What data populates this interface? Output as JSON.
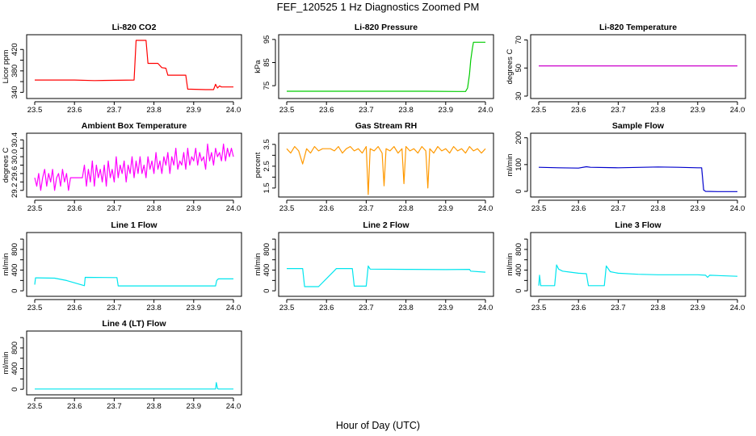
{
  "figure": {
    "title": "FEF_120525  1 Hz Diagnostics Zoomed PM",
    "xlabel": "Hour of Day (UTC)"
  },
  "chart_data": [
    {
      "id": "co2",
      "type": "line",
      "title": "Li-820 CO2",
      "ylabel": "Licor ppm",
      "xlim": [
        23.5,
        24.0
      ],
      "xticks": [
        23.5,
        23.6,
        23.7,
        23.8,
        23.9,
        24.0
      ],
      "ylim": [
        333,
        443
      ],
      "yticks": [
        340,
        360,
        380,
        400,
        420
      ],
      "ytick_labels": [
        "340",
        "380",
        "420"
      ],
      "color": "#ff0000",
      "series": [
        {
          "x": [
            23.5,
            23.6,
            23.65,
            23.75,
            23.755,
            23.78,
            23.785,
            23.81,
            23.82,
            23.83,
            23.835,
            23.88,
            23.885,
            23.93,
            23.95,
            23.955,
            23.96,
            23.965,
            23.97,
            24.0
          ],
          "y": [
            363,
            363,
            362,
            363,
            437,
            437,
            394,
            394,
            386,
            385,
            372,
            372,
            346,
            345,
            345,
            355,
            348,
            352,
            350,
            350
          ]
        }
      ]
    },
    {
      "id": "pressure",
      "type": "line",
      "title": "Li-820 Pressure",
      "ylabel": "kPa",
      "xlim": [
        23.5,
        24.0
      ],
      "xticks": [
        23.5,
        23.6,
        23.7,
        23.8,
        23.9,
        24.0
      ],
      "ylim": [
        70.5,
        96
      ],
      "yticks": [
        75,
        85,
        95
      ],
      "ytick_labels": [
        "75",
        "85",
        "95"
      ],
      "color": "#00cc00",
      "series": [
        {
          "x": [
            23.5,
            23.7,
            23.85,
            23.93,
            23.95,
            23.955,
            23.96,
            23.963,
            23.967,
            23.97,
            24.0
          ],
          "y": [
            72.6,
            72.6,
            72.6,
            72.5,
            72.5,
            74,
            80,
            86,
            91,
            93.8,
            93.8
          ]
        }
      ]
    },
    {
      "id": "temp",
      "type": "line",
      "title": "Li-820 Temperature",
      "ylabel": "degrees C",
      "xlim": [
        23.5,
        24.0
      ],
      "xticks": [
        23.5,
        23.6,
        23.7,
        23.8,
        23.9,
        24.0
      ],
      "ylim": [
        30,
        72
      ],
      "yticks": [
        30,
        50,
        70
      ],
      "ytick_labels": [
        "30",
        "50",
        "70"
      ],
      "color": "#cc00cc",
      "series": [
        {
          "x": [
            23.5,
            24.0
          ],
          "y": [
            51.5,
            51.5
          ]
        }
      ]
    },
    {
      "id": "ambient",
      "type": "line",
      "title": "Ambient Box Temperature",
      "ylabel": "degrees C",
      "xlim": [
        23.5,
        24.0
      ],
      "xticks": [
        23.5,
        23.6,
        23.7,
        23.8,
        23.9,
        24.0
      ],
      "ylim": [
        29.1,
        30.5
      ],
      "yticks": [
        29.2,
        29.4,
        29.6,
        29.8,
        30.0,
        30.2,
        30.4
      ],
      "ytick_labels": [
        "29.2",
        "29.6",
        "30.0",
        "30.4"
      ],
      "color": "#ff00ff",
      "series": [
        {
          "x": [
            23.5,
            23.505,
            23.51,
            23.515,
            23.52,
            23.525,
            23.53,
            23.535,
            23.54,
            23.545,
            23.55,
            23.555,
            23.56,
            23.565,
            23.57,
            23.575,
            23.58,
            23.585,
            23.59,
            23.6,
            23.61,
            23.62,
            23.625,
            23.63,
            23.635,
            23.64,
            23.645,
            23.65,
            23.655,
            23.66,
            23.665,
            23.67,
            23.675,
            23.68,
            23.685,
            23.69,
            23.695,
            23.7,
            23.705,
            23.71,
            23.715,
            23.72,
            23.725,
            23.73,
            23.735,
            23.74,
            23.745,
            23.75,
            23.755,
            23.76,
            23.765,
            23.77,
            23.775,
            23.78,
            23.785,
            23.79,
            23.795,
            23.8,
            23.805,
            23.81,
            23.815,
            23.82,
            23.825,
            23.83,
            23.835,
            23.84,
            23.845,
            23.85,
            23.855,
            23.86,
            23.865,
            23.87,
            23.875,
            23.88,
            23.885,
            23.89,
            23.895,
            23.9,
            23.905,
            23.91,
            23.915,
            23.92,
            23.925,
            23.93,
            23.935,
            23.94,
            23.945,
            23.95,
            23.955,
            23.96,
            23.965,
            23.97,
            23.975,
            23.98,
            23.985,
            23.99,
            23.995,
            24.0
          ],
          "y": [
            29.5,
            29.3,
            29.6,
            29.2,
            29.5,
            29.7,
            29.3,
            29.6,
            29.4,
            29.7,
            29.2,
            29.5,
            29.6,
            29.3,
            29.7,
            29.4,
            29.6,
            29.2,
            29.5,
            29.5,
            29.5,
            29.5,
            29.8,
            29.3,
            29.7,
            29.4,
            29.9,
            29.3,
            29.8,
            29.5,
            29.7,
            29.4,
            29.8,
            29.3,
            29.9,
            29.5,
            29.7,
            29.4,
            30.0,
            29.5,
            29.8,
            29.6,
            29.9,
            29.4,
            29.8,
            29.6,
            30.0,
            29.5,
            29.9,
            29.6,
            30.0,
            29.6,
            29.8,
            29.5,
            30.0,
            29.7,
            29.9,
            29.6,
            30.1,
            29.7,
            29.9,
            29.6,
            30.0,
            29.8,
            30.1,
            29.6,
            30.0,
            29.8,
            30.2,
            29.7,
            29.9,
            29.8,
            30.1,
            29.7,
            30.2,
            29.8,
            30.0,
            29.9,
            30.2,
            29.8,
            30.1,
            29.9,
            30.0,
            29.7,
            30.3,
            29.9,
            30.1,
            29.8,
            30.2,
            30.0,
            30.1,
            29.9,
            30.3,
            29.9,
            30.2,
            30.0,
            30.2,
            30.0
          ]
        }
      ]
    },
    {
      "id": "rh",
      "type": "line",
      "title": "Gas Stream RH",
      "ylabel": "percent",
      "xlim": [
        23.5,
        24.0
      ],
      "xticks": [
        23.5,
        23.6,
        23.7,
        23.8,
        23.9,
        24.0
      ],
      "ylim": [
        1.2,
        3.9
      ],
      "yticks": [
        1.5,
        2.0,
        2.5,
        3.0,
        3.5
      ],
      "ytick_labels": [
        "1.5",
        "2.5",
        "3.5"
      ],
      "color": "#ff9900",
      "series": [
        {
          "x": [
            23.5,
            23.51,
            23.52,
            23.53,
            23.54,
            23.55,
            23.56,
            23.57,
            23.58,
            23.59,
            23.6,
            23.61,
            23.62,
            23.63,
            23.64,
            23.65,
            23.66,
            23.67,
            23.68,
            23.69,
            23.7,
            23.705,
            23.71,
            23.72,
            23.73,
            23.74,
            23.745,
            23.75,
            23.76,
            23.77,
            23.78,
            23.79,
            23.795,
            23.8,
            23.81,
            23.82,
            23.83,
            23.84,
            23.85,
            23.855,
            23.86,
            23.87,
            23.88,
            23.89,
            23.9,
            23.91,
            23.92,
            23.93,
            23.94,
            23.95,
            23.96,
            23.97,
            23.98,
            23.99,
            24.0
          ],
          "y": [
            3.3,
            3.1,
            3.4,
            3.2,
            2.6,
            3.3,
            3.1,
            3.4,
            3.2,
            3.3,
            3.3,
            3.3,
            3.2,
            3.4,
            3.1,
            3.3,
            3.4,
            3.2,
            3.3,
            3.1,
            3.4,
            1.2,
            3.3,
            3.2,
            3.4,
            3.1,
            1.6,
            3.3,
            3.2,
            3.4,
            3.1,
            3.3,
            1.7,
            3.4,
            3.2,
            3.3,
            3.1,
            3.4,
            3.2,
            1.5,
            3.3,
            3.1,
            3.4,
            3.2,
            3.3,
            3.1,
            3.4,
            3.2,
            3.3,
            3.1,
            3.4,
            3.2,
            3.3,
            3.1,
            3.3
          ]
        }
      ]
    },
    {
      "id": "sample",
      "type": "line",
      "title": "Sample Flow",
      "ylabel": "ml/min",
      "xlim": [
        23.5,
        24.0
      ],
      "xticks": [
        23.5,
        23.6,
        23.7,
        23.8,
        23.9,
        24.0
      ],
      "ylim": [
        -12,
        208
      ],
      "yticks": [
        0,
        100,
        200
      ],
      "ytick_labels": [
        "0",
        "100",
        "200"
      ],
      "color": "#0000cc",
      "series": [
        {
          "x": [
            23.5,
            23.55,
            23.6,
            23.62,
            23.63,
            23.7,
            23.8,
            23.85,
            23.9,
            23.91,
            23.915,
            23.92,
            23.95,
            24.0
          ],
          "y": [
            90,
            88,
            87,
            92,
            90,
            88,
            91,
            90,
            88,
            88,
            5,
            0,
            -1,
            -1
          ]
        }
      ]
    },
    {
      "id": "line1",
      "type": "line",
      "title": "Line 1 Flow",
      "ylabel": "ml/min",
      "xlim": [
        23.5,
        24.0
      ],
      "xticks": [
        23.5,
        23.6,
        23.7,
        23.8,
        23.9,
        24.0
      ],
      "ylim": [
        -60,
        1080
      ],
      "yticks": [
        0,
        200,
        400,
        600,
        800,
        1000
      ],
      "ytick_labels": [
        "0",
        "400",
        "800"
      ],
      "color": "#00e5ee",
      "series": [
        {
          "x": [
            23.5,
            23.502,
            23.505,
            23.55,
            23.58,
            23.625,
            23.627,
            23.7,
            23.707,
            23.71,
            23.8,
            23.9,
            23.955,
            23.958,
            23.962,
            24.0
          ],
          "y": [
            120,
            250,
            250,
            245,
            200,
            100,
            260,
            255,
            255,
            95,
            95,
            95,
            95,
            200,
            230,
            230
          ]
        }
      ]
    },
    {
      "id": "line2",
      "type": "line",
      "title": "Line 2 Flow",
      "ylabel": "ml/min",
      "xlim": [
        23.5,
        24.0
      ],
      "xticks": [
        23.5,
        23.6,
        23.7,
        23.8,
        23.9,
        24.0
      ],
      "ylim": [
        -60,
        1080
      ],
      "yticks": [
        0,
        200,
        400,
        600,
        800,
        1000
      ],
      "ytick_labels": [
        "0",
        "400",
        "800"
      ],
      "color": "#00e5ee",
      "series": [
        {
          "x": [
            23.5,
            23.54,
            23.545,
            23.58,
            23.62,
            23.625,
            23.665,
            23.67,
            23.7,
            23.705,
            23.71,
            23.8,
            23.9,
            23.96,
            23.963,
            24.0
          ],
          "y": [
            430,
            430,
            80,
            80,
            390,
            430,
            430,
            90,
            90,
            480,
            420,
            415,
            410,
            415,
            380,
            360
          ]
        }
      ]
    },
    {
      "id": "line3",
      "type": "line",
      "title": "Line 3 Flow",
      "ylabel": "ml/min",
      "xlim": [
        23.5,
        24.0
      ],
      "xticks": [
        23.5,
        23.6,
        23.7,
        23.8,
        23.9,
        24.0
      ],
      "ylim": [
        -60,
        1080
      ],
      "yticks": [
        0,
        200,
        400,
        600,
        800,
        1000
      ],
      "ytick_labels": [
        "0",
        "400",
        "800"
      ],
      "color": "#00e5ee",
      "series": [
        {
          "x": [
            23.5,
            23.502,
            23.505,
            23.54,
            23.545,
            23.55,
            23.56,
            23.58,
            23.6,
            23.62,
            23.625,
            23.665,
            23.67,
            23.68,
            23.7,
            23.75,
            23.8,
            23.85,
            23.9,
            23.92,
            23.925,
            23.93,
            24.0
          ],
          "y": [
            100,
            300,
            100,
            100,
            500,
            420,
            380,
            360,
            340,
            330,
            100,
            100,
            480,
            370,
            340,
            320,
            310,
            310,
            310,
            300,
            260,
            300,
            280
          ]
        }
      ]
    },
    {
      "id": "line4",
      "type": "line",
      "title": "Line 4 (LT) Flow",
      "ylabel": "ml/min",
      "xlim": [
        23.5,
        24.0
      ],
      "xticks": [
        23.5,
        23.6,
        23.7,
        23.8,
        23.9,
        24.0
      ],
      "ylim": [
        -60,
        1080
      ],
      "yticks": [
        0,
        200,
        400,
        600,
        800,
        1000
      ],
      "ytick_labels": [
        "0",
        "400",
        "800"
      ],
      "color": "#00e5ee",
      "series": [
        {
          "x": [
            23.5,
            23.6,
            23.7,
            23.8,
            23.9,
            23.955,
            23.957,
            23.96,
            23.962,
            24.0
          ],
          "y": [
            5,
            5,
            5,
            5,
            5,
            5,
            130,
            15,
            5,
            5
          ]
        }
      ]
    }
  ]
}
